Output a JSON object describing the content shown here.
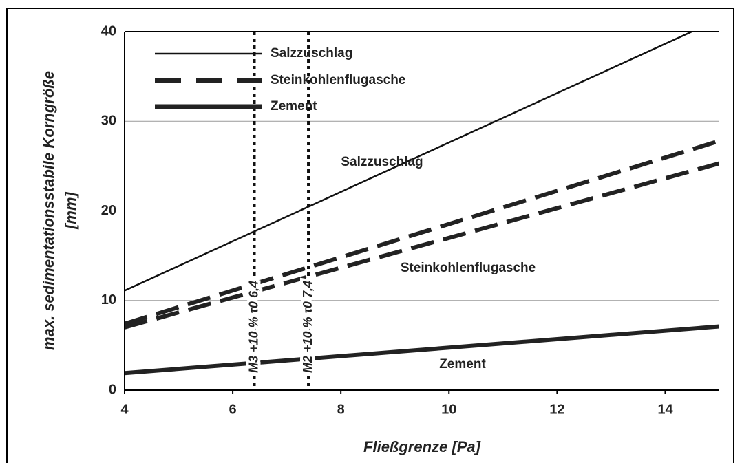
{
  "chart_data": {
    "type": "line",
    "xlabel": "Fließgrenze [Pa]",
    "ylabel": [
      "max. sedimentationsstabile Korngröße",
      "[mm]"
    ],
    "x": [
      4,
      15
    ],
    "series": [
      {
        "name": "Salzzuschlag",
        "color": "#111111",
        "style": "thin",
        "values": [
          11.1,
          41.4
        ]
      },
      {
        "name": "Steinkohlenflugasche",
        "color": "#222222",
        "style": "dashed",
        "values": [
          7.4,
          27.8
        ],
        "values_lower": [
          7.0,
          25.3
        ]
      },
      {
        "name": "Zement",
        "color": "#222222",
        "style": "thick",
        "values": [
          1.9,
          7.1
        ]
      }
    ],
    "annotations": [
      {
        "x": 6.4,
        "label": "M3 +10 % τ0 6,4"
      },
      {
        "x": 7.4,
        "label": "M2 +10 % τ0 7,4"
      }
    ],
    "xlim": [
      4,
      15
    ],
    "xticks": [
      4,
      6,
      8,
      10,
      12,
      14
    ],
    "ylim": [
      0,
      40
    ],
    "yticks": [
      0,
      10,
      20,
      30,
      40
    ],
    "grid": true,
    "legend": "upper left"
  }
}
